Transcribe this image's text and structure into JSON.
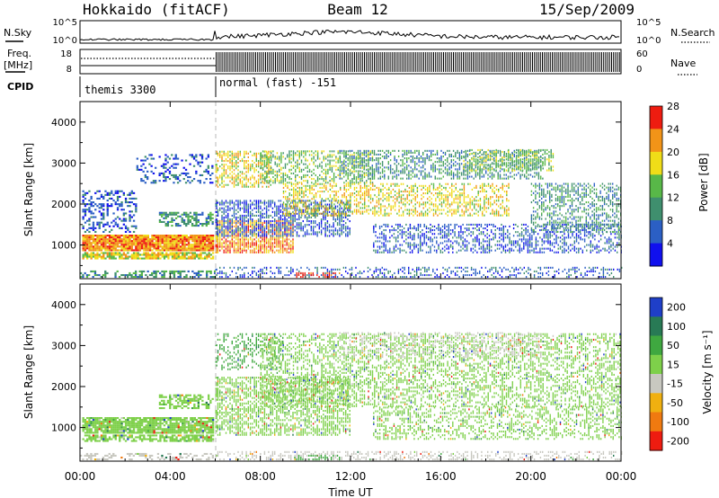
{
  "header": {
    "title_left": "Hokkaido (fitACF)",
    "title_center": "Beam 12",
    "title_right": "15/Sep/2009"
  },
  "top_panels": {
    "nsky_label": "N.Sky",
    "nsky_ticks": [
      "10^5",
      "10^0"
    ],
    "nsearch_label": "N.Search",
    "nsearch_ticks": [
      "10^5",
      "10^0"
    ],
    "freq_label_1": "Freq.",
    "freq_label_2": "[MHz]",
    "freq_ticks": [
      "18",
      "8"
    ],
    "nave_label": "Nave",
    "nave_ticks": [
      "60",
      "0"
    ],
    "cpid_label": "CPID",
    "cpid_segments": [
      "themis 3300",
      "normal (fast) -151"
    ],
    "cpid_change_hour": 6.0
  },
  "chart_data": [
    {
      "type": "heatmap",
      "name": "Power",
      "ylabel": "Slant Range [km]",
      "ylim": [
        180,
        4500
      ],
      "yticks": [
        1000,
        2000,
        3000,
        4000
      ],
      "xlim": [
        0,
        24
      ],
      "xticks": [
        0,
        4,
        8,
        12,
        16,
        20,
        24
      ],
      "xtick_labels": [
        "00:00",
        "04:00",
        "08:00",
        "12:00",
        "16:00",
        "20:00",
        "00:00"
      ],
      "colorbar_label": "Power [dB]",
      "colorbar_ticks": [
        "4",
        "8",
        "12",
        "16",
        "20",
        "24",
        "28"
      ],
      "colorbar_colors": [
        "#1010ee",
        "#2b5fc4",
        "#3f8f6e",
        "#58b848",
        "#f0dd18",
        "#f29418",
        "#ee1c10"
      ],
      "regions": [
        {
          "t0": 0.1,
          "t1": 5.9,
          "r0": 850,
          "r1": 1250,
          "level": 5,
          "density": 0.95
        },
        {
          "t0": 0.1,
          "t1": 5.9,
          "r0": 650,
          "r1": 820,
          "level": 4,
          "density": 0.8
        },
        {
          "t0": 0.1,
          "t1": 2.5,
          "r0": 1300,
          "r1": 2300,
          "level": 1,
          "density": 0.35
        },
        {
          "t0": 3.5,
          "t1": 5.9,
          "r0": 1450,
          "r1": 1800,
          "level": 2,
          "density": 0.6
        },
        {
          "t0": 2.5,
          "t1": 5.9,
          "r0": 2500,
          "r1": 3200,
          "level": 1,
          "density": 0.25
        },
        {
          "t0": 0.0,
          "t1": 6.0,
          "r0": 200,
          "r1": 380,
          "level": 2,
          "density": 0.4
        },
        {
          "t0": 6.0,
          "t1": 9.5,
          "r0": 800,
          "r1": 1600,
          "level": 5,
          "density": 0.8
        },
        {
          "t0": 6.0,
          "t1": 8.5,
          "r0": 2400,
          "r1": 3300,
          "level": 4,
          "density": 0.55
        },
        {
          "t0": 6.0,
          "t1": 12.0,
          "r0": 1200,
          "r1": 2100,
          "level": 1,
          "density": 0.6
        },
        {
          "t0": 8.0,
          "t1": 13.0,
          "r0": 2500,
          "r1": 3300,
          "level": 3,
          "density": 0.5
        },
        {
          "t0": 9.0,
          "t1": 19.0,
          "r0": 1700,
          "r1": 2500,
          "level": 4,
          "density": 0.5
        },
        {
          "t0": 11.5,
          "t1": 20.5,
          "r0": 2600,
          "r1": 3300,
          "level": 2,
          "density": 0.5
        },
        {
          "t0": 13.0,
          "t1": 24.0,
          "r0": 800,
          "r1": 1500,
          "level": 1,
          "density": 0.45
        },
        {
          "t0": 6.0,
          "t1": 24.0,
          "r0": 200,
          "r1": 450,
          "level": 1,
          "density": 0.35
        },
        {
          "t0": 9.5,
          "t1": 11.5,
          "r0": 200,
          "r1": 300,
          "level": 6,
          "density": 0.5
        },
        {
          "t0": 17.0,
          "t1": 21.0,
          "r0": 2800,
          "r1": 3300,
          "level": 3,
          "density": 0.5
        },
        {
          "t0": 20.0,
          "t1": 24.0,
          "r0": 1300,
          "r1": 2500,
          "level": 2,
          "density": 0.5
        }
      ]
    },
    {
      "type": "heatmap",
      "name": "Velocity",
      "ylabel": "Slant Range [km]",
      "ylim": [
        180,
        4500
      ],
      "yticks": [
        1000,
        2000,
        3000,
        4000
      ],
      "xlim": [
        0,
        24
      ],
      "xticks": [
        0,
        4,
        8,
        12,
        16,
        20,
        24
      ],
      "xtick_labels": [
        "00:00",
        "04:00",
        "08:00",
        "12:00",
        "16:00",
        "20:00",
        "00:00"
      ],
      "colorbar_label": "Velocity [m s⁻¹]",
      "colorbar_ticks": [
        "200",
        "100",
        "50",
        "15",
        "-15",
        "-50",
        "-100",
        "-200"
      ],
      "colorbar_colors": [
        "#1f3fc8",
        "#287a55",
        "#3fa840",
        "#7ed04a",
        "#c8c8c0",
        "#f0b010",
        "#f07a10",
        "#ee1c10"
      ],
      "regions": [
        {
          "t0": 0.1,
          "t1": 5.9,
          "r0": 850,
          "r1": 1250,
          "level": 4,
          "density": 0.85
        },
        {
          "t0": 0.1,
          "t1": 5.9,
          "r0": 650,
          "r1": 820,
          "level": 4,
          "density": 0.7
        },
        {
          "t0": 3.5,
          "t1": 5.9,
          "r0": 1450,
          "r1": 1800,
          "level": 4,
          "density": 0.5
        },
        {
          "t0": 0.0,
          "t1": 6.0,
          "r0": 200,
          "r1": 380,
          "level": 3,
          "density": 0.35
        },
        {
          "t0": 6.0,
          "t1": 12.0,
          "r0": 800,
          "r1": 2200,
          "level": 4,
          "density": 0.6
        },
        {
          "t0": 6.0,
          "t1": 9.0,
          "r0": 2400,
          "r1": 3300,
          "level": 5,
          "density": 0.35
        },
        {
          "t0": 8.0,
          "t1": 24.0,
          "r0": 1500,
          "r1": 3300,
          "level": 4,
          "density": 0.45
        },
        {
          "t0": 11.5,
          "t1": 20.5,
          "r0": 2700,
          "r1": 3300,
          "level": 3,
          "density": 0.25
        },
        {
          "t0": 13.0,
          "t1": 24.0,
          "r0": 700,
          "r1": 1500,
          "level": 4,
          "density": 0.4
        },
        {
          "t0": 6.0,
          "t1": 24.0,
          "r0": 200,
          "r1": 420,
          "level": 3,
          "density": 0.4
        },
        {
          "t0": 9.5,
          "t1": 11.5,
          "r0": 200,
          "r1": 320,
          "level": 5,
          "density": 0.4
        }
      ]
    }
  ],
  "footer": {
    "xlabel": "Time UT"
  }
}
